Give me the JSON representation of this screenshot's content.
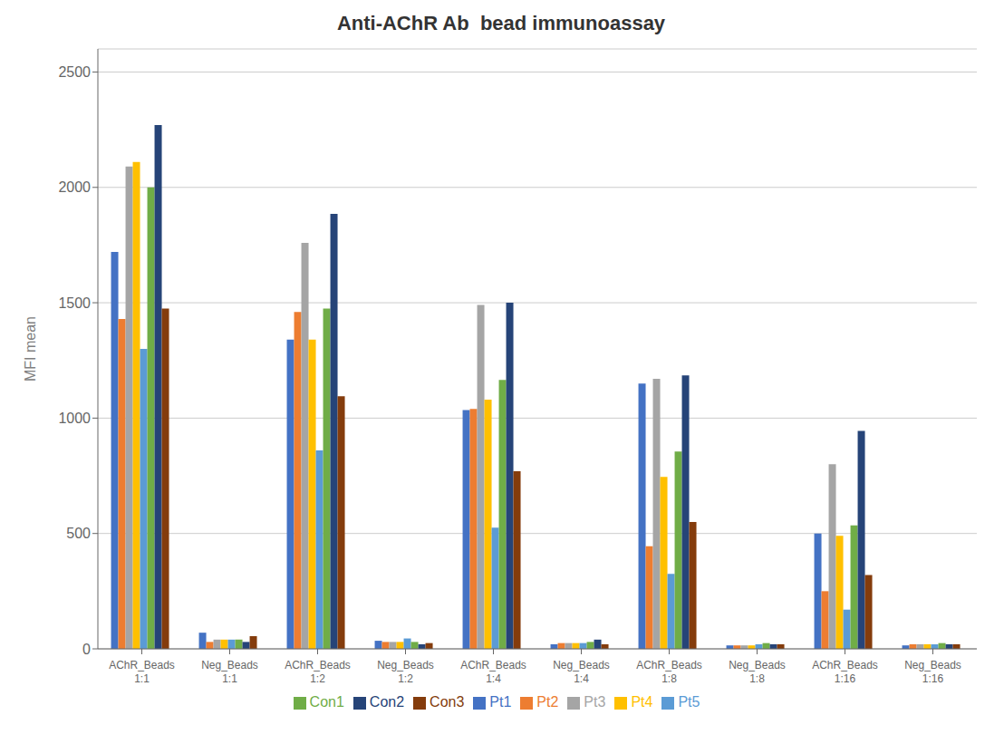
{
  "chart_data": {
    "type": "bar",
    "title": "Anti-AChR Ab  bead immunoassay",
    "y_label": "MFI mean",
    "categories": [
      "AChR_Beads\n1:1",
      "Neg_Beads\n1:1",
      "AChR_Beads\n1:2",
      "Neg_Beads\n1:2",
      "AChR_Beads\n1:4",
      "Neg_Beads\n1:4",
      "AChR_Beads\n1:8",
      "Neg_Beads\n1:8",
      "AChR_Beads\n1:16",
      "Neg_Beads\n1:16"
    ],
    "series": [
      {
        "name": "Pt1",
        "color": "#4472C4",
        "values": [
          1720,
          70,
          1340,
          35,
          1035,
          20,
          1150,
          15,
          500,
          15
        ]
      },
      {
        "name": "Pt2",
        "color": "#ED7D31",
        "values": [
          1430,
          30,
          1460,
          30,
          1040,
          25,
          445,
          15,
          250,
          20
        ]
      },
      {
        "name": "Pt3",
        "color": "#A5A5A5",
        "values": [
          2090,
          40,
          1760,
          30,
          1490,
          25,
          1170,
          15,
          800,
          20
        ]
      },
      {
        "name": "Pt4",
        "color": "#FFC000",
        "values": [
          2110,
          40,
          1340,
          30,
          1080,
          25,
          745,
          15,
          490,
          20
        ]
      },
      {
        "name": "Pt5",
        "color": "#5B9BD5",
        "values": [
          1300,
          40,
          860,
          45,
          525,
          25,
          325,
          20,
          170,
          20
        ]
      },
      {
        "name": "Con1",
        "color": "#70AD47",
        "values": [
          2000,
          40,
          1475,
          30,
          1165,
          30,
          855,
          25,
          535,
          25
        ]
      },
      {
        "name": "Con2",
        "color": "#264478",
        "values": [
          2270,
          30,
          1885,
          20,
          1500,
          40,
          1185,
          20,
          945,
          20
        ]
      },
      {
        "name": "Con3",
        "color": "#843C0C",
        "values": [
          1475,
          55,
          1095,
          25,
          770,
          20,
          550,
          20,
          320,
          20
        ]
      }
    ],
    "ylim": [
      0,
      2600
    ],
    "yticks": [
      0,
      500,
      1000,
      1500,
      2000,
      2500
    ],
    "grid": true,
    "legend": "bottom"
  }
}
